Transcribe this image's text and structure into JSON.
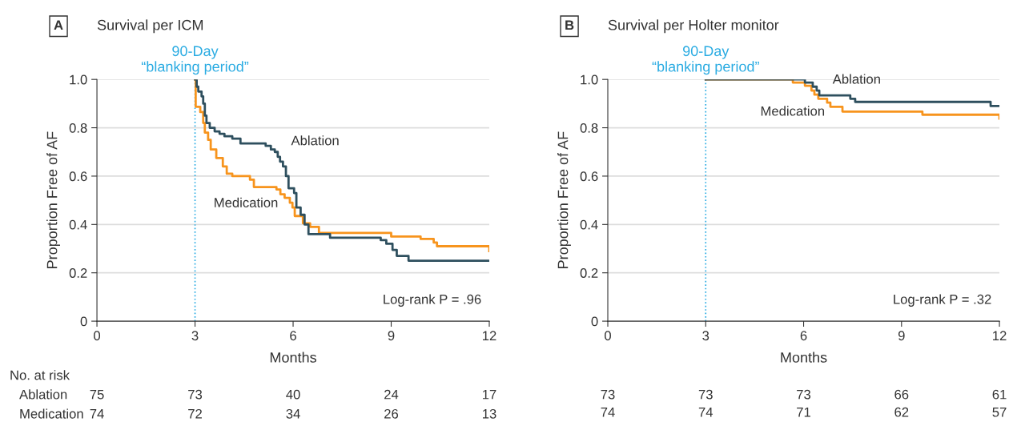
{
  "chart_data": [
    {
      "type": "step",
      "title": "Survival per ICM",
      "xlabel": "Months",
      "ylabel": "Proportion Free of AF",
      "xlim": [
        0,
        12
      ],
      "xticks": [
        0,
        3,
        6,
        9,
        12
      ],
      "ylim": [
        0,
        1.0
      ],
      "yticks": [
        {
          "value": 0,
          "label": "0"
        },
        {
          "value": 0.2,
          "label": "0.2"
        },
        {
          "value": 0.4,
          "label": "0.4"
        },
        {
          "value": 0.6,
          "label": "0.6"
        },
        {
          "value": 0.8,
          "label": "0.8"
        },
        {
          "value": 1.0,
          "label": "1.0"
        }
      ],
      "grid": "y",
      "legend": false,
      "ref_lines": [
        {
          "axis": "x",
          "value": 3,
          "label": "90-Day\n“blanking period”",
          "color": "#29abe2",
          "line_style": "dotted"
        }
      ],
      "series": [
        {
          "name": "Ablation",
          "color": "#2e4f5e",
          "x": [
            3.0,
            3.05,
            3.1,
            3.2,
            3.25,
            3.3,
            3.35,
            3.45,
            3.6,
            3.75,
            3.9,
            4.14,
            4.39,
            5.16,
            5.32,
            5.44,
            5.53,
            5.6,
            5.69,
            5.78,
            5.86,
            6.03,
            6.1,
            6.23,
            6.35,
            6.47,
            7.13,
            8.68,
            8.85,
            9.04,
            9.17,
            9.53,
            12.0
          ],
          "values": [
            1.0,
            0.97,
            0.95,
            0.93,
            0.9,
            0.85,
            0.82,
            0.8,
            0.785,
            0.775,
            0.765,
            0.755,
            0.735,
            0.725,
            0.71,
            0.7,
            0.68,
            0.66,
            0.64,
            0.6,
            0.55,
            0.53,
            0.47,
            0.44,
            0.4,
            0.36,
            0.345,
            0.335,
            0.32,
            0.295,
            0.27,
            0.25,
            0.25
          ]
        },
        {
          "name": "Medication",
          "color": "#f7941d",
          "x": [
            3.0,
            3.02,
            3.16,
            3.25,
            3.3,
            3.4,
            3.48,
            3.65,
            3.85,
            3.97,
            4.14,
            4.68,
            4.8,
            5.49,
            5.61,
            5.74,
            5.9,
            5.98,
            6.05,
            6.3,
            6.52,
            6.79,
            9.0,
            9.9,
            10.3,
            10.4,
            12.0
          ],
          "values": [
            1.0,
            0.887,
            0.865,
            0.82,
            0.78,
            0.75,
            0.71,
            0.675,
            0.64,
            0.61,
            0.6,
            0.585,
            0.555,
            0.545,
            0.525,
            0.51,
            0.49,
            0.47,
            0.435,
            0.405,
            0.39,
            0.365,
            0.35,
            0.34,
            0.325,
            0.31,
            0.29
          ]
        }
      ],
      "annotations": [
        "A",
        "Log-rank P = .96",
        "No. at risk",
        "Ablation 75 73 40 24 17",
        "Medication 74 72 34 26 13"
      ]
    },
    {
      "type": "step",
      "title": "Survival per Holter monitor",
      "xlabel": "Months",
      "ylabel": "Proportion Free of AF",
      "xlim": [
        0,
        12
      ],
      "xticks": [
        0,
        3,
        6,
        9,
        12
      ],
      "ylim": [
        0,
        1.0
      ],
      "yticks": [
        {
          "value": 0,
          "label": "0"
        },
        {
          "value": 0.2,
          "label": "0.2"
        },
        {
          "value": 0.4,
          "label": "0.4"
        },
        {
          "value": 0.6,
          "label": "0.6"
        },
        {
          "value": 0.8,
          "label": "0.8"
        },
        {
          "value": 1.0,
          "label": "1.0"
        }
      ],
      "grid": "y",
      "legend": false,
      "ref_lines": [
        {
          "axis": "x",
          "value": 3,
          "label": "90-Day\n“blanking period”",
          "color": "#29abe2",
          "line_style": "dotted"
        }
      ],
      "series": [
        {
          "name": "Ablation",
          "color": "#2e4f5e",
          "x": [
            3.0,
            6.04,
            6.28,
            6.4,
            6.48,
            7.43,
            7.58,
            11.73,
            12.0
          ],
          "values": [
            1.0,
            0.987,
            0.97,
            0.954,
            0.934,
            0.92,
            0.907,
            0.89,
            0.89
          ]
        },
        {
          "name": "Medication",
          "color": "#f7941d",
          "x": [
            3.0,
            5.67,
            6.04,
            6.24,
            6.33,
            6.45,
            6.72,
            6.82,
            7.19,
            9.64,
            12.0
          ],
          "values": [
            1.0,
            0.987,
            0.974,
            0.954,
            0.937,
            0.92,
            0.904,
            0.887,
            0.867,
            0.854,
            0.838
          ]
        }
      ],
      "annotations": [
        "B",
        "Log-rank P = .32",
        "73 73 73 66 61",
        "74 74 71 62 57"
      ]
    }
  ]
}
